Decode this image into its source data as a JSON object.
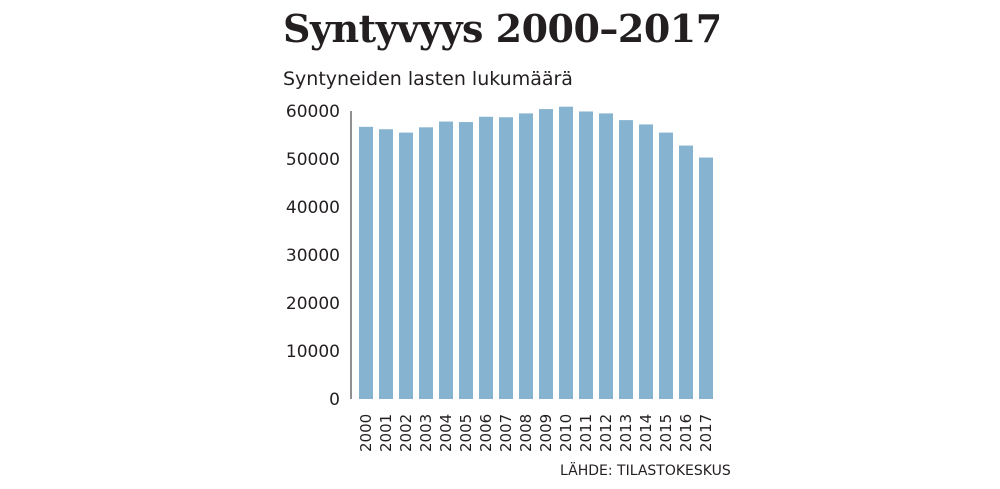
{
  "chart_data": {
    "type": "bar",
    "title": "Syntyvyys 2000–2017",
    "subtitle": "Syntyneiden lasten lukumäärä",
    "source": "LÄHDE: TILASTOKESKUS",
    "categories": [
      "2000",
      "2001",
      "2002",
      "2003",
      "2004",
      "2005",
      "2006",
      "2007",
      "2008",
      "2009",
      "2010",
      "2011",
      "2012",
      "2013",
      "2014",
      "2015",
      "2016",
      "2017"
    ],
    "values": [
      56700,
      56200,
      55500,
      56600,
      57800,
      57700,
      58800,
      58700,
      59500,
      60400,
      60900,
      59900,
      59500,
      58100,
      57200,
      55500,
      52800,
      50300
    ],
    "yticks": [
      0,
      10000,
      20000,
      30000,
      40000,
      50000,
      60000
    ],
    "ylim": [
      0,
      60000
    ],
    "xlabel": "",
    "ylabel": "",
    "grid": false,
    "bar_color": "#86b3cf",
    "text_color": "#231f20"
  }
}
